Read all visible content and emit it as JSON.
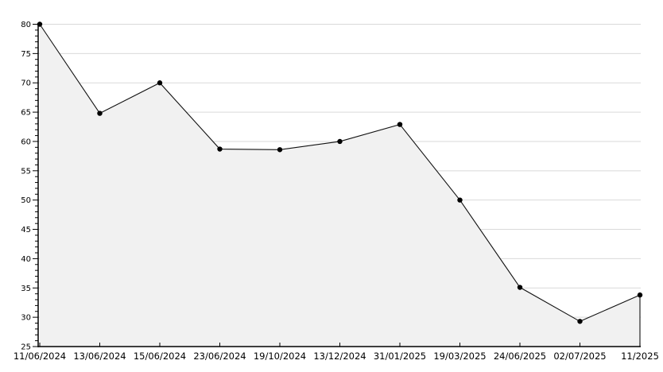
{
  "chart_data": {
    "type": "area",
    "title": "",
    "xlabel": "",
    "ylabel": "",
    "categories": [
      "11/06/2024",
      "13/06/2024",
      "15/06/2024",
      "23/06/2024",
      "19/10/2024",
      "13/12/2024",
      "31/01/2025",
      "19/03/2025",
      "24/06/2025",
      "02/07/2025",
      "11/2025"
    ],
    "values": [
      80,
      64.8,
      70,
      58.7,
      58.6,
      60,
      62.9,
      50,
      35.1,
      29.3,
      33.8
    ],
    "ylim": [
      25,
      80
    ],
    "ytick_step": 5,
    "yminor_step": 1,
    "ytick_labels": [
      "25",
      "30",
      "35",
      "40",
      "45",
      "50",
      "55",
      "60",
      "65",
      "70",
      "75",
      "80"
    ],
    "grid": true,
    "legend": false,
    "marker": "filled-dot",
    "colors": {
      "line": "#111111",
      "marker": "#000000",
      "area_fill": "#f1f1f1",
      "gridline": "#d9d9d9",
      "axis": "#000000",
      "tick": "#000000",
      "label": "#000000",
      "background": "#ffffff"
    }
  }
}
